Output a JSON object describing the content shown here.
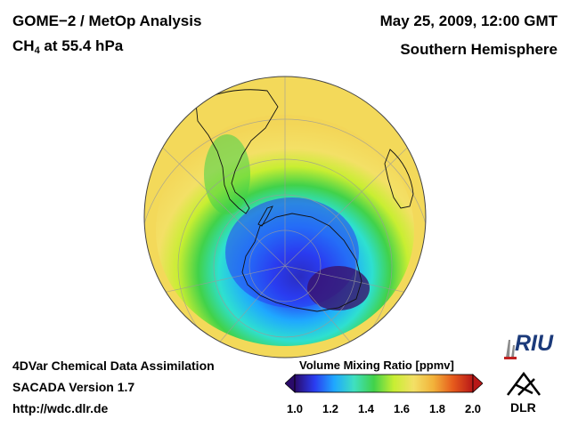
{
  "header": {
    "title_line1": "GOME−2 / MetOp Analysis",
    "species_main": "CH",
    "species_sub": "4",
    "species_rest": " at 55.4 hPa",
    "datetime": "May 25, 2009, 12:00 GMT",
    "hemisphere": "Southern Hemisphere"
  },
  "footer": {
    "line1": "4DVar Chemical Data Assimilation",
    "line2": "SACADA Version 1.7",
    "line3": "http://wdc.dlr.de"
  },
  "colorbar": {
    "title": "Volume Mixing Ratio [ppmv]",
    "min": 1.0,
    "max": 2.0,
    "ticks": [
      "1.0",
      "1.2",
      "1.4",
      "1.6",
      "1.8",
      "2.0"
    ],
    "colors": [
      "#2a0a6a",
      "#2a3cf0",
      "#1fa8ff",
      "#3fe0c0",
      "#41d24a",
      "#c8ee32",
      "#f3e066",
      "#f2b23a",
      "#e65a1c",
      "#b81818"
    ]
  },
  "map": {
    "ring_value": 1.55,
    "background_value": 1.63,
    "core_value": 1.05
  },
  "logos": {
    "riu": "RIU",
    "dlr": "DLR"
  }
}
